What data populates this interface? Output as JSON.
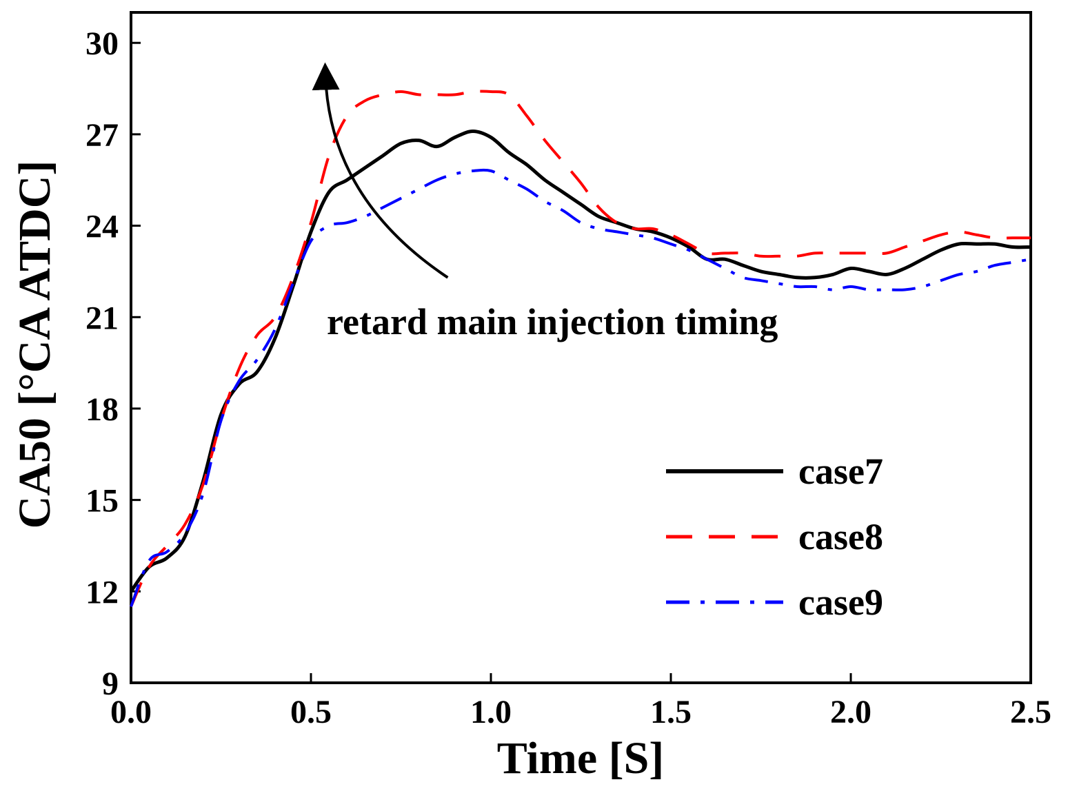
{
  "chart_data": {
    "type": "line",
    "xlabel": "Time [S]",
    "ylabel": "CA50 [°CA ATDC]",
    "xlim": [
      0,
      2.5
    ],
    "ylim": [
      9,
      31
    ],
    "xticks": [
      "0.0",
      "0.5",
      "1.0",
      "1.5",
      "2.0",
      "2.5"
    ],
    "xtick_values": [
      0,
      0.5,
      1.0,
      1.5,
      2.0,
      2.5
    ],
    "yticks": [
      "9",
      "12",
      "15",
      "18",
      "21",
      "24",
      "27",
      "30"
    ],
    "ytick_values": [
      9,
      12,
      15,
      18,
      21,
      24,
      27,
      30
    ],
    "grid": false,
    "legend_position": "bottom-right",
    "series": [
      {
        "name": "case7",
        "color": "#000000",
        "dash": "solid",
        "x": [
          0,
          0.05,
          0.1,
          0.15,
          0.2,
          0.25,
          0.3,
          0.35,
          0.4,
          0.45,
          0.5,
          0.55,
          0.6,
          0.65,
          0.7,
          0.75,
          0.8,
          0.85,
          0.9,
          0.95,
          1.0,
          1.05,
          1.1,
          1.15,
          1.2,
          1.25,
          1.3,
          1.35,
          1.4,
          1.45,
          1.5,
          1.55,
          1.6,
          1.65,
          1.7,
          1.75,
          1.8,
          1.85,
          1.9,
          1.95,
          2.0,
          2.05,
          2.1,
          2.15,
          2.2,
          2.25,
          2.3,
          2.35,
          2.4,
          2.45,
          2.5
        ],
        "y": [
          12.0,
          12.8,
          13.1,
          13.8,
          15.6,
          17.8,
          18.8,
          19.2,
          20.3,
          22.0,
          23.8,
          25.1,
          25.5,
          25.9,
          26.3,
          26.7,
          26.8,
          26.6,
          26.9,
          27.1,
          26.9,
          26.4,
          26.0,
          25.5,
          25.1,
          24.7,
          24.3,
          24.1,
          23.9,
          23.8,
          23.6,
          23.3,
          22.9,
          22.9,
          22.7,
          22.5,
          22.4,
          22.3,
          22.3,
          22.4,
          22.6,
          22.5,
          22.4,
          22.6,
          22.9,
          23.2,
          23.4,
          23.4,
          23.4,
          23.3,
          23.3
        ]
      },
      {
        "name": "case8",
        "color": "#ff0000",
        "dash": "dashed",
        "x": [
          0,
          0.05,
          0.1,
          0.15,
          0.2,
          0.25,
          0.3,
          0.35,
          0.4,
          0.45,
          0.5,
          0.55,
          0.6,
          0.65,
          0.7,
          0.75,
          0.8,
          0.85,
          0.9,
          0.95,
          1.0,
          1.05,
          1.1,
          1.15,
          1.2,
          1.25,
          1.3,
          1.35,
          1.4,
          1.45,
          1.5,
          1.55,
          1.6,
          1.65,
          1.7,
          1.75,
          1.8,
          1.85,
          1.9,
          1.95,
          2.0,
          2.05,
          2.1,
          2.15,
          2.2,
          2.25,
          2.3,
          2.35,
          2.4,
          2.45,
          2.5
        ],
        "y": [
          11.5,
          12.8,
          13.5,
          14.2,
          15.5,
          17.6,
          19.3,
          20.4,
          21.0,
          22.3,
          24.1,
          26.3,
          27.6,
          28.1,
          28.3,
          28.4,
          28.3,
          28.3,
          28.3,
          28.4,
          28.4,
          28.3,
          27.6,
          26.8,
          26.1,
          25.4,
          24.6,
          24.1,
          23.9,
          23.9,
          23.7,
          23.4,
          23.1,
          23.1,
          23.1,
          23.0,
          23.0,
          23.0,
          23.1,
          23.1,
          23.1,
          23.1,
          23.1,
          23.3,
          23.5,
          23.7,
          23.8,
          23.7,
          23.6,
          23.6,
          23.6
        ]
      },
      {
        "name": "case9",
        "color": "#0000ff",
        "dash": "dashdot",
        "x": [
          0,
          0.05,
          0.1,
          0.15,
          0.2,
          0.25,
          0.3,
          0.35,
          0.4,
          0.45,
          0.5,
          0.55,
          0.6,
          0.65,
          0.7,
          0.75,
          0.8,
          0.85,
          0.9,
          0.95,
          1.0,
          1.05,
          1.1,
          1.15,
          1.2,
          1.25,
          1.3,
          1.35,
          1.4,
          1.45,
          1.5,
          1.55,
          1.6,
          1.65,
          1.7,
          1.75,
          1.8,
          1.85,
          1.9,
          1.95,
          2.0,
          2.05,
          2.1,
          2.15,
          2.2,
          2.25,
          2.3,
          2.35,
          2.4,
          2.45,
          2.5
        ],
        "y": [
          11.5,
          13.0,
          13.3,
          13.9,
          15.2,
          17.6,
          18.9,
          19.6,
          20.6,
          22.1,
          23.5,
          24.0,
          24.1,
          24.3,
          24.6,
          24.9,
          25.2,
          25.5,
          25.7,
          25.8,
          25.8,
          25.5,
          25.2,
          24.8,
          24.5,
          24.1,
          23.9,
          23.8,
          23.7,
          23.6,
          23.4,
          23.2,
          22.9,
          22.6,
          22.3,
          22.2,
          22.1,
          22.0,
          22.0,
          21.9,
          22.0,
          21.9,
          21.9,
          21.9,
          22.0,
          22.2,
          22.4,
          22.5,
          22.7,
          22.8,
          22.9
        ]
      }
    ],
    "annotation": {
      "text": "retard main injection timing",
      "arrow_from": [
        0.88,
        22.3
      ],
      "arrow_to": [
        0.54,
        29.0
      ]
    }
  }
}
